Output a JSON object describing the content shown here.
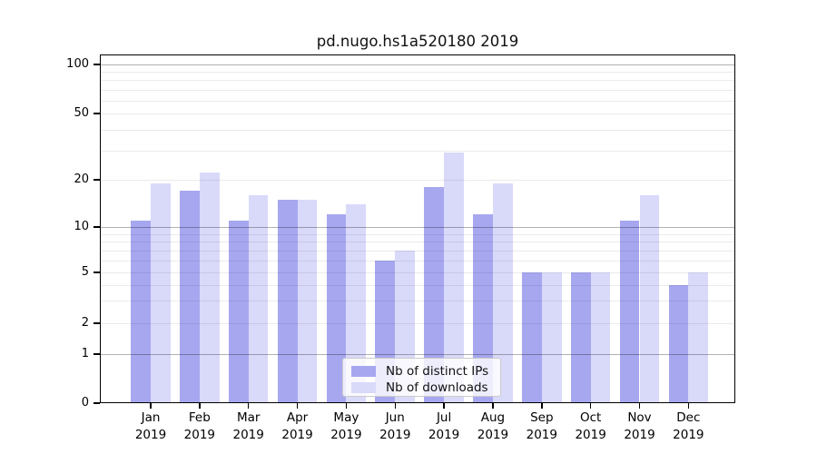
{
  "figure": {
    "title": "pd.nugo.hs1a520180 2019"
  },
  "chart_data": {
    "type": "bar",
    "title": "pd.nugo.hs1a520180 2019",
    "categories": [
      "Jan 2019",
      "Feb 2019",
      "Mar 2019",
      "Apr 2019",
      "May 2019",
      "Jun 2019",
      "Jul 2019",
      "Aug 2019",
      "Sep 2019",
      "Oct 2019",
      "Nov 2019",
      "Dec 2019"
    ],
    "series": [
      {
        "name": "Nb of distinct IPs",
        "color": "#a7a7f0",
        "values": [
          11,
          17,
          11,
          15,
          12,
          6,
          18,
          12,
          5,
          5,
          11,
          4
        ]
      },
      {
        "name": "Nb of downloads",
        "color": "#d9d9f9",
        "values": [
          19,
          22,
          16,
          15,
          14,
          7,
          29,
          19,
          5,
          5,
          16,
          5
        ]
      }
    ],
    "x_axis": {
      "months": [
        "Jan",
        "Feb",
        "Mar",
        "Apr",
        "May",
        "Jun",
        "Jul",
        "Aug",
        "Sep",
        "Oct",
        "Nov",
        "Dec"
      ],
      "year_line": "2019"
    },
    "y_axis": {
      "scale": "log-like with 0 baseline",
      "tick_values": [
        0,
        1,
        2,
        5,
        10,
        20,
        50,
        100
      ],
      "major_grid_values": [
        1,
        10,
        100
      ],
      "minor_grid_values": [
        2,
        3,
        4,
        5,
        6,
        7,
        8,
        9,
        20,
        30,
        40,
        50,
        60,
        70,
        80,
        90
      ],
      "ylim": [
        0,
        120
      ]
    },
    "grid": "horizontal only, minor light / major darker, drawn over bars",
    "legend_position": "inside lower-center"
  }
}
